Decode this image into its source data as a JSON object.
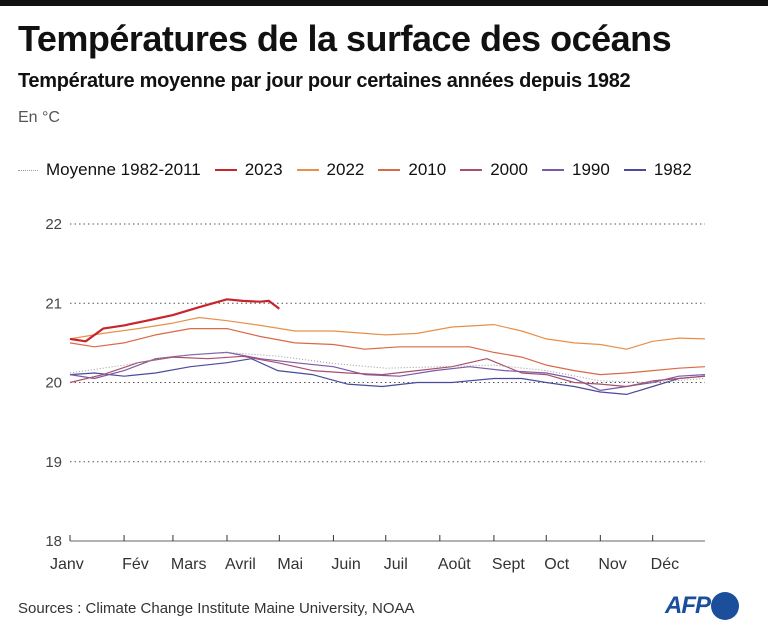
{
  "header": {
    "title": "Températures de la surface des océans",
    "subtitle": "Température moyenne par jour pour certaines années depuis 1982",
    "unit": "En °C"
  },
  "footer": {
    "sources": "Sources : Climate Change Institute Maine University, NOAA",
    "logo": "AFP"
  },
  "chart_data": {
    "type": "line",
    "title": "Températures de la surface des océans",
    "subtitle": "Température moyenne par jour pour certaines années depuis 1982",
    "xlabel": "",
    "ylabel": "En °C",
    "ylim": [
      18,
      22
    ],
    "yticks": [
      18,
      19,
      20,
      21,
      22
    ],
    "grid": true,
    "legend_position": "top",
    "x_unit": "day of year",
    "xlim": [
      1,
      365
    ],
    "month_labels": [
      "Janv",
      "Fév",
      "Mars",
      "Avril",
      "Mai",
      "Juin",
      "Juil",
      "Août",
      "Sept",
      "Oct",
      "Nov",
      "Déc"
    ],
    "month_start_days": [
      1,
      32,
      60,
      91,
      121,
      152,
      182,
      213,
      244,
      274,
      305,
      335
    ],
    "series": [
      {
        "name": "Moyenne 1982-2011",
        "color": "#999999",
        "style": "dotted",
        "x": [
          1,
          32,
          60,
          91,
          121,
          152,
          182,
          213,
          244,
          274,
          305,
          335,
          365
        ],
        "y": [
          20.12,
          20.22,
          20.33,
          20.38,
          20.33,
          20.24,
          20.18,
          20.2,
          20.22,
          20.15,
          20.02,
          20.0,
          20.05
        ]
      },
      {
        "name": "2023",
        "color": "#c8242b",
        "style": "solid",
        "x": [
          1,
          10,
          20,
          32,
          45,
          60,
          75,
          91,
          100,
          110,
          115,
          121
        ],
        "y": [
          20.55,
          20.52,
          20.68,
          20.72,
          20.78,
          20.85,
          20.95,
          21.05,
          21.03,
          21.02,
          21.03,
          20.93
        ]
      },
      {
        "name": "2022",
        "color": "#e8904a",
        "style": "solid",
        "x": [
          1,
          20,
          40,
          60,
          75,
          91,
          110,
          130,
          152,
          182,
          200,
          220,
          244,
          260,
          274,
          290,
          305,
          320,
          335,
          350,
          365
        ],
        "y": [
          20.55,
          20.62,
          20.68,
          20.75,
          20.82,
          20.78,
          20.72,
          20.65,
          20.65,
          20.6,
          20.62,
          20.7,
          20.73,
          20.65,
          20.55,
          20.5,
          20.48,
          20.42,
          20.52,
          20.56,
          20.55
        ]
      },
      {
        "name": "2010",
        "color": "#d96a45",
        "style": "solid",
        "x": [
          1,
          15,
          32,
          50,
          70,
          91,
          110,
          130,
          152,
          170,
          190,
          210,
          230,
          244,
          260,
          274,
          290,
          305,
          320,
          335,
          350,
          365
        ],
        "y": [
          20.5,
          20.45,
          20.5,
          20.6,
          20.68,
          20.68,
          20.58,
          20.5,
          20.48,
          20.42,
          20.45,
          20.45,
          20.45,
          20.38,
          20.32,
          20.22,
          20.15,
          20.1,
          20.12,
          20.15,
          20.18,
          20.2
        ]
      },
      {
        "name": "2000",
        "color": "#a8506a",
        "style": "solid",
        "x": [
          1,
          20,
          40,
          60,
          80,
          100,
          120,
          140,
          160,
          180,
          200,
          220,
          240,
          260,
          274,
          290,
          305,
          320,
          335,
          350,
          365
        ],
        "y": [
          20.0,
          20.1,
          20.25,
          20.32,
          20.3,
          20.33,
          20.25,
          20.15,
          20.12,
          20.1,
          20.15,
          20.2,
          20.3,
          20.12,
          20.1,
          20.0,
          19.98,
          19.95,
          20.02,
          20.05,
          20.08
        ]
      },
      {
        "name": "1990",
        "color": "#7a5aa8",
        "style": "solid",
        "x": [
          1,
          15,
          32,
          50,
          70,
          91,
          110,
          130,
          152,
          170,
          190,
          210,
          230,
          250,
          274,
          290,
          305,
          320,
          335,
          350,
          365
        ],
        "y": [
          20.1,
          20.05,
          20.15,
          20.3,
          20.35,
          20.38,
          20.3,
          20.25,
          20.2,
          20.1,
          20.08,
          20.15,
          20.2,
          20.15,
          20.12,
          20.05,
          19.9,
          19.95,
          20.0,
          20.08,
          20.1
        ]
      },
      {
        "name": "1982",
        "color": "#4a4a9e",
        "style": "solid",
        "x": [
          1,
          15,
          32,
          50,
          70,
          91,
          105,
          120,
          140,
          160,
          180,
          200,
          220,
          244,
          260,
          274,
          290,
          305,
          320,
          335,
          350,
          365
        ],
        "y": [
          20.1,
          20.12,
          20.08,
          20.12,
          20.2,
          20.25,
          20.3,
          20.15,
          20.1,
          19.98,
          19.95,
          20.0,
          20.0,
          20.05,
          20.05,
          20.0,
          19.95,
          19.88,
          19.85,
          19.95,
          20.05,
          20.08
        ]
      }
    ]
  }
}
